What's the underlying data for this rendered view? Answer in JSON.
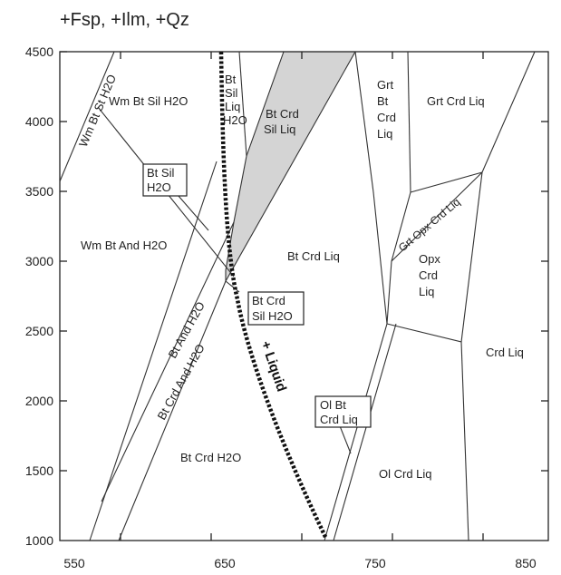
{
  "title": "+Fsp, +Ilm, +Qz",
  "x_ticks": [
    "550",
    "650",
    "750",
    "850"
  ],
  "y_ticks": [
    "4500",
    "4000",
    "3500",
    "3000",
    "2500",
    "2000",
    "1500",
    "1000"
  ],
  "colors": {
    "shaded_field": "#d4d4d4",
    "lines": "#333333"
  },
  "fields": {
    "wm_bt_st_h2o": "Wm Bt St H2O",
    "wm_bt_sil_h2o": "Wm Bt Sil H2O",
    "bt_sil_liq_h2o": [
      "Bt",
      "Sil",
      "Liq",
      "H2O"
    ],
    "bt_crd_sil_liq": [
      "Bt Crd",
      "Sil Liq"
    ],
    "grt_bt_crd_liq": [
      "Grt",
      "Bt",
      "Crd",
      "Liq"
    ],
    "grt_crd_liq": "Grt Crd Liq",
    "bt_sil_h2o": [
      "Bt Sil",
      "H2O"
    ],
    "wm_bt_and_h2o": "Wm Bt And H2O",
    "bt_crd_liq": "Bt Crd Liq",
    "grt_opx_crd_liq": "Grt Opx Crd Liq",
    "opx_crd_liq": [
      "Opx",
      "Crd",
      "Liq"
    ],
    "bt_crd_sil_h2o": [
      "Bt Crd",
      "Sil H2O"
    ],
    "bt_and_h2o": "Bt And H2O",
    "bt_crd_and_h2o": "Bt Crd And H2O",
    "liquid": "+ Liquid",
    "crd_liq": "Crd Liq",
    "ol_bt_crd_liq": [
      "Ol Bt",
      "Crd Liq"
    ],
    "bt_crd_h2o": "Bt Crd H2O",
    "ol_crd_liq": "Ol Crd Liq"
  }
}
